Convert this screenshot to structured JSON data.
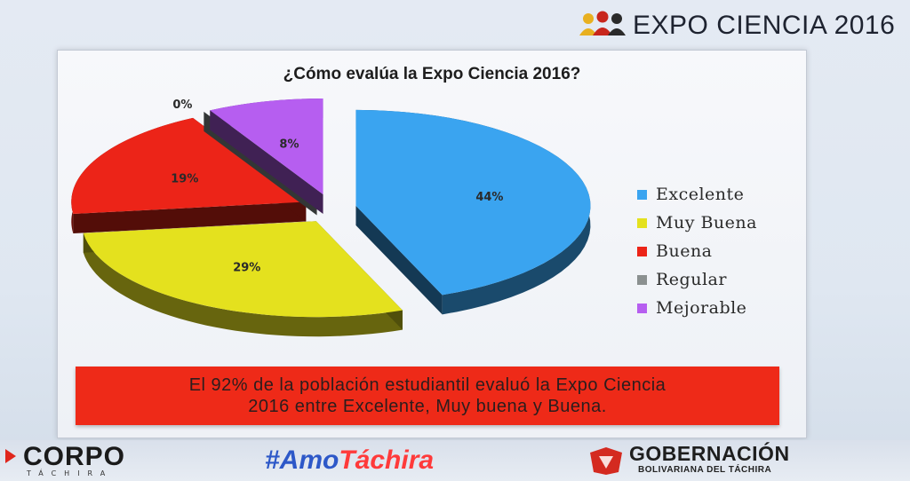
{
  "header": {
    "title": "EXPO CIENCIA 2016"
  },
  "chart_data": {
    "type": "pie",
    "title": "¿Cómo evalúa la Expo Ciencia 2016?",
    "categories": [
      "Excelente",
      "Muy Buena",
      "Buena",
      "Regular",
      "Mejorable"
    ],
    "values": [
      44,
      29,
      19,
      0,
      8
    ],
    "labels": [
      "44%",
      "29%",
      "19%",
      "0%",
      "8%"
    ],
    "colors": [
      "#3aa4f0",
      "#e4e11e",
      "#ec2418",
      "#555a5a",
      "#b65ef0"
    ],
    "exploded": true,
    "three_d": true,
    "legend_position": "right"
  },
  "note": {
    "line1": "El 92% de la población estudiantil evaluó la Expo Ciencia",
    "line2": "2016 entre Excelente, Muy buena y Buena."
  },
  "footer": {
    "corpo": "CORPO",
    "corpo_sub": "TÁCHIRA",
    "hashtag_prefix": "#Amo",
    "hashtag_accent": "Táchira",
    "gob_title": "GOBERNACIÓN",
    "gob_sub": "BOLIVARIANA DEL TÁCHIRA"
  }
}
